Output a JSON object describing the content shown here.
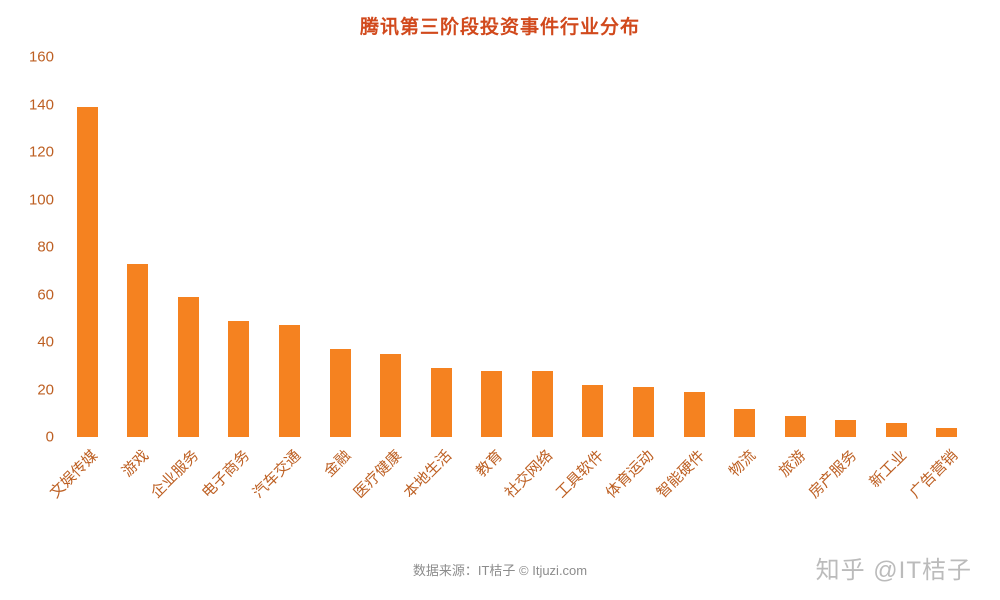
{
  "title": "腾讯第三阶段投资事件行业分布",
  "footer": {
    "source_text": "数据来源：IT桔子 © Itjuzi.com"
  },
  "watermark": {
    "text": "知乎 @IT桔子"
  },
  "colors": {
    "bar": "#f58220",
    "title": "#d1491c",
    "axis_label": "#bd5f22",
    "footer": "#8c8c8c",
    "watermark": "#bbbbbb",
    "background": "#ffffff"
  },
  "chart_data": {
    "type": "bar",
    "title": "腾讯第三阶段投资事件行业分布",
    "categories": [
      "文娱传媒",
      "游戏",
      "企业服务",
      "电子商务",
      "汽车交通",
      "金融",
      "医疗健康",
      "本地生活",
      "教育",
      "社交网络",
      "工具软件",
      "体育运动",
      "智能硬件",
      "物流",
      "旅游",
      "房产服务",
      "新工业",
      "广告营销"
    ],
    "values": [
      139,
      73,
      59,
      49,
      47,
      37,
      35,
      29,
      28,
      28,
      22,
      21,
      19,
      12,
      9,
      7,
      6,
      4
    ],
    "xlabel": "",
    "ylabel": "",
    "ylim": [
      0,
      160
    ],
    "ytick_step": 20,
    "yticks": [
      0,
      20,
      40,
      60,
      80,
      100,
      120,
      140,
      160
    ],
    "grid": false,
    "legend": false,
    "source_note": "数据来源：IT桔子 © Itjuzi.com"
  }
}
